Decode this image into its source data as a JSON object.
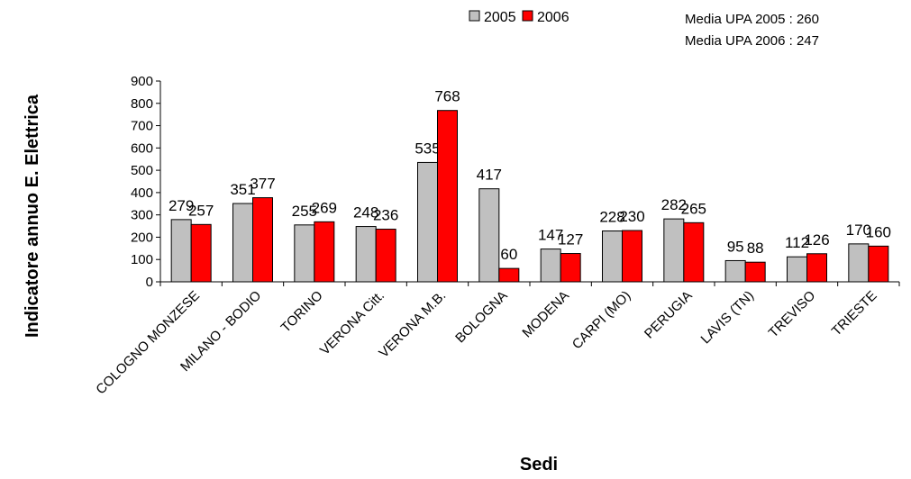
{
  "chart_data": {
    "type": "bar",
    "categories": [
      "COLOGNO MONZESE",
      "MILANO - BODIO",
      "TORINO",
      "VERONA Citt.",
      "VERONA M.B.",
      "BOLOGNA",
      "MODENA",
      "CARPI (MO)",
      "PERUGIA",
      "LAVIS (TN)",
      "TREVISO",
      "TRIESTE"
    ],
    "series": [
      {
        "name": "2005",
        "color": "#c0c0c0",
        "values": [
          279,
          351,
          255,
          248,
          535,
          417,
          147,
          228,
          282,
          95,
          112,
          170
        ]
      },
      {
        "name": "2006",
        "color": "#ff0000",
        "values": [
          257,
          377,
          269,
          236,
          768,
          60,
          127,
          230,
          265,
          88,
          126,
          160
        ]
      }
    ],
    "xlabel": "Sedi",
    "ylabel": "Indicatore annuo E. Elettrica",
    "ylim": [
      0,
      900
    ],
    "yticks": [
      0,
      100,
      200,
      300,
      400,
      500,
      600,
      700,
      800,
      900
    ],
    "grid": false,
    "legend_position": "top",
    "annotations": [
      "Media UPA 2005 : 260",
      "Media UPA 2006 : 247"
    ]
  }
}
